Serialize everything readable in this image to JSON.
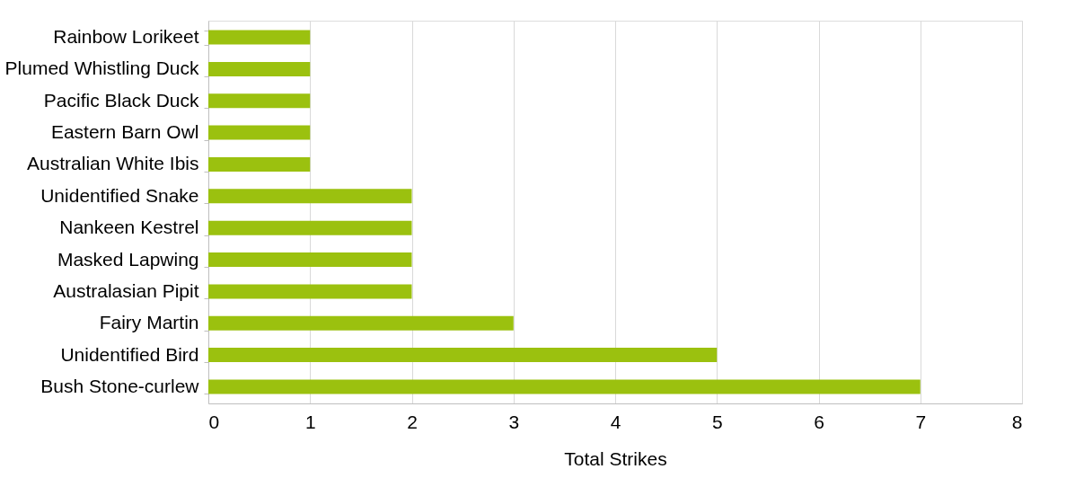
{
  "chart_data": {
    "type": "bar",
    "orientation": "horizontal",
    "xlabel": "Total Strikes",
    "categories": [
      "Rainbow Lorikeet",
      "Plumed Whistling Duck",
      "Pacific Black Duck",
      "Eastern Barn Owl",
      "Australian White Ibis",
      "Unidentified Snake",
      "Nankeen Kestrel",
      "Masked Lapwing",
      "Australasian Pipit",
      "Fairy Martin",
      "Unidentified Bird",
      "Bush Stone-curlew"
    ],
    "values": [
      1,
      1,
      1,
      1,
      1,
      2,
      2,
      2,
      2,
      3,
      5,
      7
    ],
    "color": "#9bc10f",
    "xlim": [
      0,
      8
    ],
    "xticks": [
      0,
      1,
      2,
      3,
      4,
      5,
      6,
      7,
      8
    ],
    "grid": "x"
  }
}
